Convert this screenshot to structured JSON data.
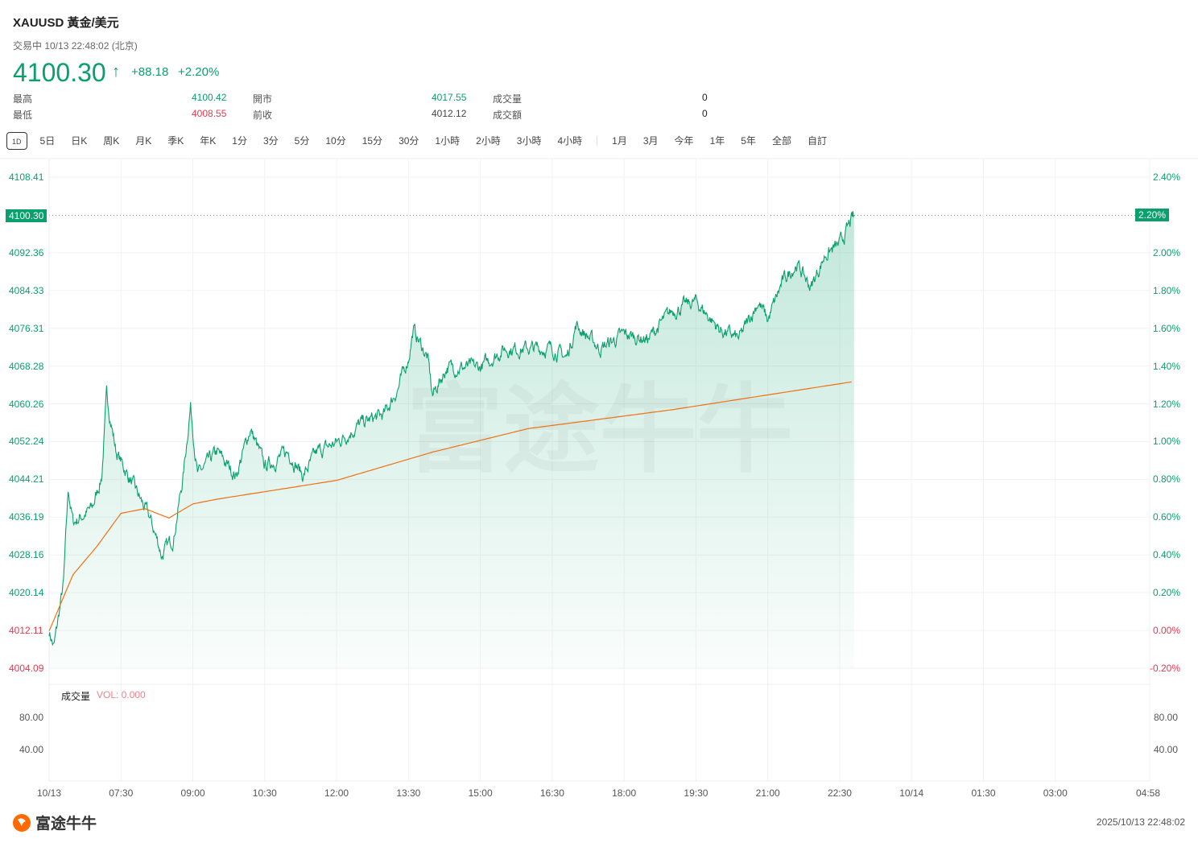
{
  "header": {
    "title": "XAUUSD  黃金/美元",
    "status": "交易中 10/13 22:48:02 (北京)",
    "price": "4100.30",
    "arrow": "↑",
    "change": "+88.18",
    "change_pct": "+2.20%"
  },
  "stats": [
    {
      "label": "最高",
      "value": "4100.42",
      "color": "#0aa06e"
    },
    {
      "label": "開市",
      "value": "4017.55",
      "color": "#0aa06e"
    },
    {
      "label": "成交量",
      "value": "0",
      "color": "#222"
    },
    {
      "label": "最低",
      "value": "4008.55",
      "color": "#e8384f"
    },
    {
      "label": "前收",
      "value": "4012.12",
      "color": "#444"
    },
    {
      "label": "成交額",
      "value": "0",
      "color": "#222"
    }
  ],
  "tabs": [
    "1D",
    "5日",
    "日K",
    "周K",
    "月K",
    "季K",
    "年K",
    "1分",
    "3分",
    "5分",
    "10分",
    "15分",
    "30分",
    "1小時",
    "2小時",
    "3小時",
    "4小時",
    "|",
    "1月",
    "3月",
    "今年",
    "1年",
    "5年",
    "全部",
    "自訂"
  ],
  "volume": {
    "label": "成交量",
    "value": "VOL: 0.000",
    "ticks": [
      "80.00",
      "40.00"
    ]
  },
  "footer": {
    "brand": "富途牛牛",
    "timestamp": "2025/10/13 22:48:02"
  },
  "colors": {
    "up": "#0aa06e",
    "down": "#e8384f",
    "avg": "#f07010"
  },
  "chart_data": {
    "type": "area",
    "title": "XAUUSD 1D",
    "prev_close": 4012.12,
    "last_price": "4100.30",
    "last_pct": "2.20%",
    "ylim": [
      4004.09,
      4108.41
    ],
    "y_ticks": [
      "4108.41",
      "4100.30",
      "4092.36",
      "4084.33",
      "4076.31",
      "4068.28",
      "4060.26",
      "4052.24",
      "4044.21",
      "4036.19",
      "4028.16",
      "4020.14",
      "4012.11",
      "4004.09"
    ],
    "y_ticks_right": [
      "2.40%",
      "2.20%",
      "2.00%",
      "1.80%",
      "1.60%",
      "1.40%",
      "1.20%",
      "1.00%",
      "0.80%",
      "0.60%",
      "0.40%",
      "0.20%",
      "0.00%",
      "-0.20%"
    ],
    "x_ticks": [
      "10/13",
      "07:30",
      "09:00",
      "10:30",
      "12:00",
      "13:30",
      "15:00",
      "16:30",
      "18:00",
      "19:30",
      "21:00",
      "22:30",
      "10/14",
      "01:30",
      "03:00",
      "04:58"
    ],
    "x_range_hours_from_0600": [
      0,
      22.97
    ],
    "price_series": {
      "name": "Price",
      "hours": [
        0,
        0.1,
        0.3,
        0.4,
        0.5,
        0.9,
        1.1,
        1.2,
        1.4,
        1.6,
        1.9,
        2.1,
        2.3,
        2.35,
        2.6,
        2.8,
        2.95,
        3.1,
        3.5,
        3.9,
        4.2,
        4.5,
        5.0,
        5.3,
        5.6,
        6.0,
        6.5,
        7.0,
        7.3,
        7.5,
        7.6,
        7.9,
        8.0,
        8.3,
        9.0,
        9.5,
        10.0,
        10.5,
        10.8,
        11.0,
        11.5,
        12.0,
        12.5,
        13.0,
        13.5,
        14.0,
        14.4,
        14.8,
        15.0,
        15.3,
        15.6,
        15.9,
        16.2,
        16.5,
        16.8
      ],
      "values": [
        4012,
        4008.5,
        4022,
        4042,
        4035,
        4038,
        4045,
        4062,
        4050,
        4046,
        4040,
        4036,
        4030,
        4028,
        4032,
        4045,
        4060,
        4045,
        4050,
        4045,
        4055,
        4047,
        4050,
        4045,
        4050,
        4052,
        4056,
        4058,
        4064,
        4070,
        4076,
        4070,
        4062,
        4068,
        4068,
        4072,
        4072,
        4072,
        4070,
        4077,
        4072,
        4075,
        4074,
        4080,
        4082,
        4076,
        4074,
        4082,
        4078,
        4086,
        4090,
        4085,
        4092,
        4094,
        4100.3
      ]
    },
    "avg_series": {
      "name": "Average",
      "hours": [
        0,
        0.5,
        1.0,
        1.5,
        2.0,
        2.5,
        3.0,
        3.5,
        6.0,
        8.0,
        10.0,
        13.0,
        16.8
      ],
      "values": [
        4012,
        4024,
        4030,
        4037,
        4038,
        4036,
        4039,
        4040,
        4044,
        4050,
        4055,
        4059,
        4065
      ]
    }
  }
}
